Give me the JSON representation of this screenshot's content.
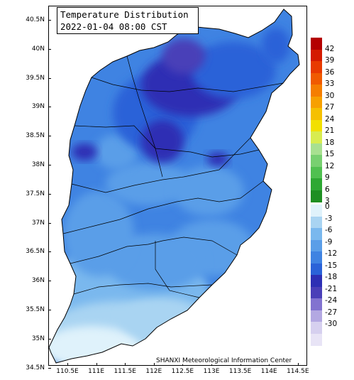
{
  "map": {
    "title_line1": "Temperature Distribution",
    "title_line2": "2022-01-04 08:00 CST",
    "credit": "SHANXI Meteorological Information Center",
    "region": "Shanxi",
    "latitude_labels": [
      "40.5N",
      "40N",
      "39.5N",
      "39N",
      "38.5N",
      "38N",
      "37.5N",
      "37N",
      "36.5N",
      "36N",
      "35.5N",
      "35N",
      "34.5N"
    ],
    "longitude_labels": [
      "110.5E",
      "111E",
      "111.5E",
      "112E",
      "112.5E",
      "113E",
      "113.5E",
      "114E",
      "114.5E"
    ],
    "bounds": {
      "lat_min": 34.5,
      "lat_max": 40.75,
      "lon_min": 110.0,
      "lon_max": 114.5
    },
    "background_color": "#ffffff",
    "boundary_color": "#000000"
  },
  "legend": {
    "upper_labels": [
      "42",
      "39",
      "36",
      "33",
      "30",
      "27",
      "24",
      "21",
      "18",
      "15",
      "12",
      "9",
      "6",
      "3"
    ],
    "upper_colors": [
      "#b40000",
      "#d41a00",
      "#e83a00",
      "#f05a00",
      "#f57e00",
      "#f7a000",
      "#f5c000",
      "#f2e000",
      "#d8ec50",
      "#a8e090",
      "#78d070",
      "#50c050",
      "#2ea833",
      "#1e8f22"
    ],
    "lower_labels": [
      "0",
      "-3",
      "-6",
      "-9",
      "-12",
      "-15",
      "-18",
      "-21",
      "-24",
      "-27",
      "-30"
    ],
    "lower_colors": [
      "#dff2fb",
      "#a9d4f2",
      "#7ab8ee",
      "#5a9ee8",
      "#3f83e2",
      "#2a62d8",
      "#2d2fb4",
      "#4a3fb8",
      "#8273d0",
      "#b3a8e2",
      "#d6d0ef",
      "#e8e4f6"
    ]
  }
}
